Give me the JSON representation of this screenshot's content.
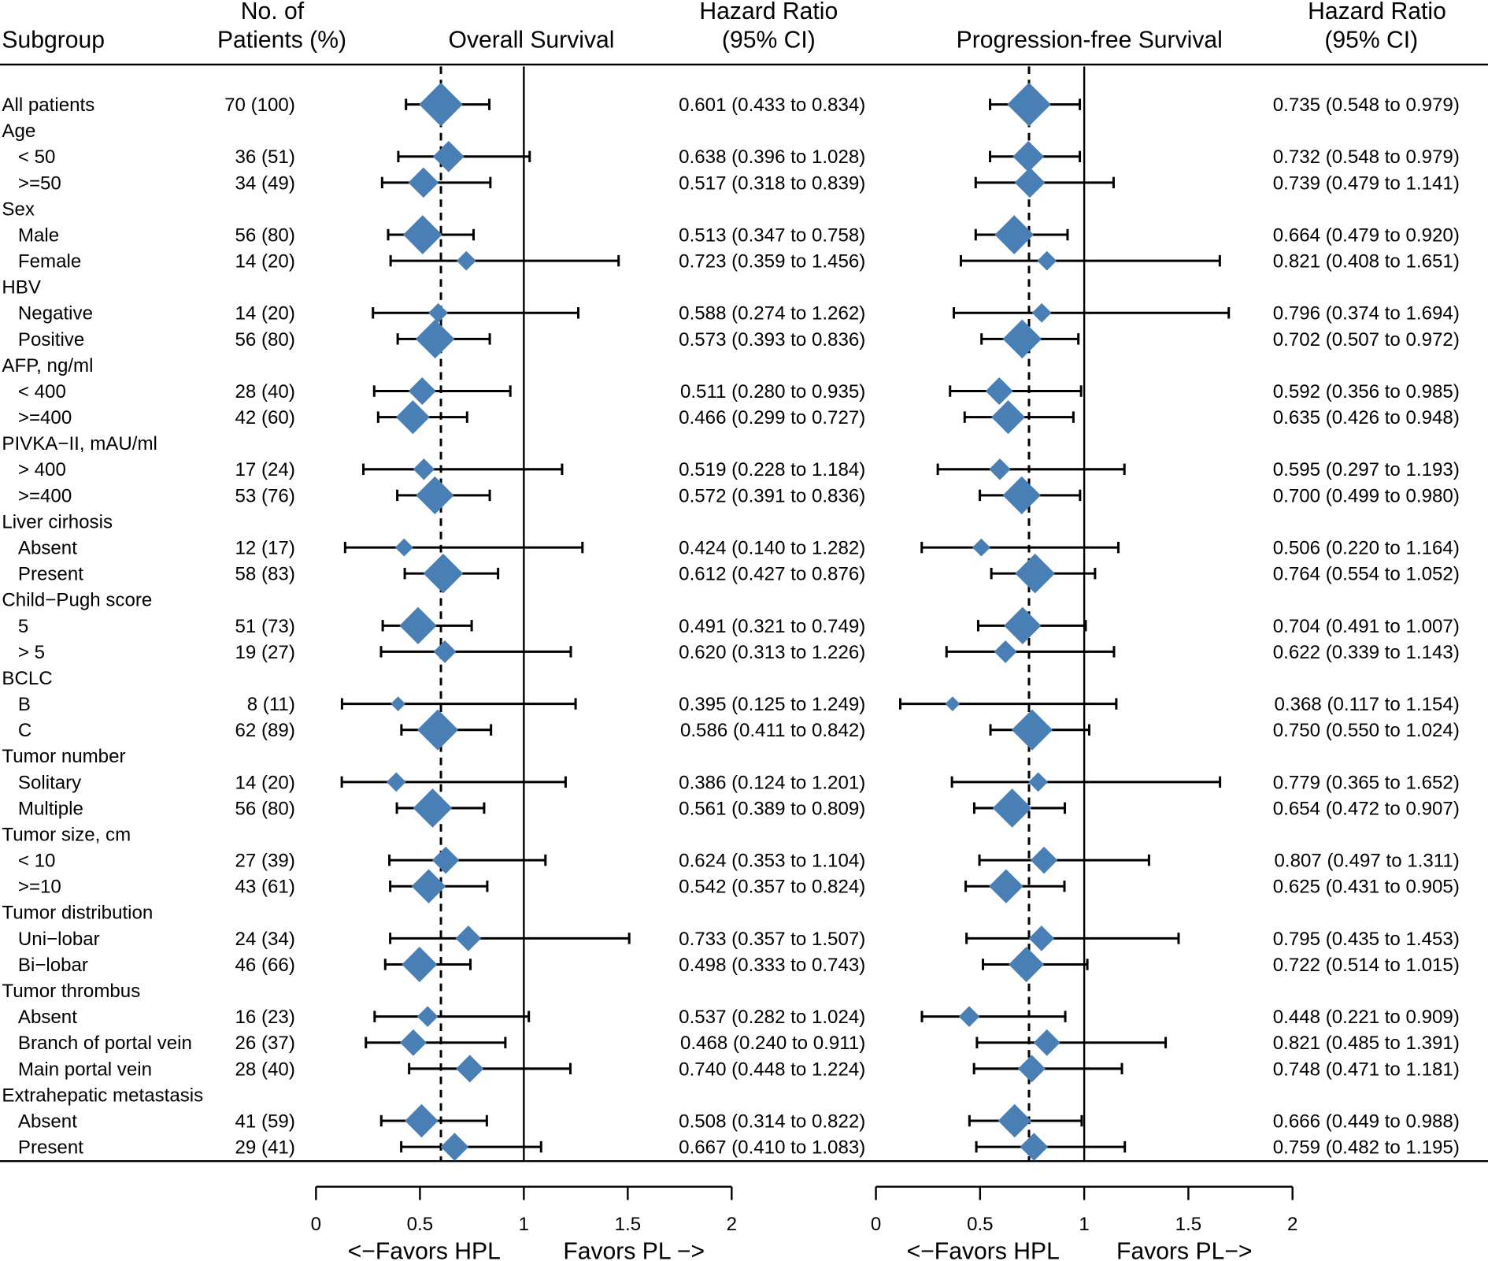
{
  "chart_data": {
    "type": "forest",
    "title": "",
    "headers": {
      "subgroup": "Subgroup",
      "patients_line1": "No. of",
      "patients_line2": "Patients (%)",
      "os_title": "Overall Survival",
      "pfs_title": "Progression-free Survival",
      "hr_line1": "Hazard Ratio",
      "hr_line2": "(95% CI)"
    },
    "axis": {
      "min": 0,
      "max": 2,
      "ticks": [
        0,
        0.5,
        1,
        1.5,
        2
      ],
      "tick_labels": [
        "0",
        "0.5",
        "1",
        "1.5",
        "2"
      ],
      "reference_line": 1,
      "left_label": "<−Favors HPL",
      "right_label_os": "Favors PL −>",
      "right_label_pfs": "Favors PL−>"
    },
    "overall_hr_line": {
      "os": 0.601,
      "pfs": 0.735
    },
    "colors": {
      "marker": "#4a7fb5",
      "line": "#000000"
    },
    "rows": [
      {
        "label": "All patients",
        "group": true,
        "indent": false,
        "n": "70 (100)",
        "os": {
          "hr": 0.601,
          "lo": 0.433,
          "hi": 0.834,
          "text": "0.601 (0.433 to 0.834)"
        },
        "pfs": {
          "hr": 0.735,
          "lo": 0.548,
          "hi": 0.979,
          "text": "0.735 (0.548 to 0.979)"
        }
      },
      {
        "label": "Age",
        "header": true
      },
      {
        "label": "< 50",
        "indent": true,
        "n": "36 (51)",
        "os": {
          "hr": 0.638,
          "lo": 0.396,
          "hi": 1.028,
          "text": "0.638 (0.396 to 1.028)"
        },
        "pfs": {
          "hr": 0.732,
          "lo": 0.548,
          "hi": 0.979,
          "text": "0.732 (0.548 to 0.979)"
        }
      },
      {
        "label": ">=50",
        "indent": true,
        "n": "34 (49)",
        "os": {
          "hr": 0.517,
          "lo": 0.318,
          "hi": 0.839,
          "text": "0.517 (0.318 to 0.839)"
        },
        "pfs": {
          "hr": 0.739,
          "lo": 0.479,
          "hi": 1.141,
          "text": "0.739 (0.479 to 1.141)"
        }
      },
      {
        "label": "Sex",
        "header": true
      },
      {
        "label": "Male",
        "indent": true,
        "n": "56 (80)",
        "os": {
          "hr": 0.513,
          "lo": 0.347,
          "hi": 0.758,
          "text": "0.513 (0.347 to 0.758)"
        },
        "pfs": {
          "hr": 0.664,
          "lo": 0.479,
          "hi": 0.92,
          "text": "0.664 (0.479 to 0.920)"
        }
      },
      {
        "label": "Female",
        "indent": true,
        "n": "14 (20)",
        "os": {
          "hr": 0.723,
          "lo": 0.359,
          "hi": 1.456,
          "text": "0.723 (0.359 to 1.456)"
        },
        "pfs": {
          "hr": 0.821,
          "lo": 0.408,
          "hi": 1.651,
          "text": "0.821 (0.408 to 1.651)"
        }
      },
      {
        "label": "HBV",
        "header": true
      },
      {
        "label": "Negative",
        "indent": true,
        "n": "14 (20)",
        "os": {
          "hr": 0.588,
          "lo": 0.274,
          "hi": 1.262,
          "text": "0.588 (0.274 to 1.262)"
        },
        "pfs": {
          "hr": 0.796,
          "lo": 0.374,
          "hi": 1.694,
          "text": "0.796 (0.374 to 1.694)"
        }
      },
      {
        "label": "Positive",
        "indent": true,
        "n": "56 (80)",
        "os": {
          "hr": 0.573,
          "lo": 0.393,
          "hi": 0.836,
          "text": "0.573 (0.393 to 0.836)"
        },
        "pfs": {
          "hr": 0.702,
          "lo": 0.507,
          "hi": 0.972,
          "text": "0.702 (0.507 to 0.972)"
        }
      },
      {
        "label": "AFP, ng/ml",
        "header": true
      },
      {
        "label": "< 400",
        "indent": true,
        "n": "28 (40)",
        "os": {
          "hr": 0.511,
          "lo": 0.28,
          "hi": 0.935,
          "text": "0.511 (0.280 to 0.935)"
        },
        "pfs": {
          "hr": 0.592,
          "lo": 0.356,
          "hi": 0.985,
          "text": "0.592 (0.356 to 0.985)"
        }
      },
      {
        "label": ">=400",
        "indent": true,
        "n": "42 (60)",
        "os": {
          "hr": 0.466,
          "lo": 0.299,
          "hi": 0.727,
          "text": "0.466 (0.299 to 0.727)"
        },
        "pfs": {
          "hr": 0.635,
          "lo": 0.426,
          "hi": 0.948,
          "text": "0.635 (0.426 to 0.948)"
        }
      },
      {
        "label": "PIVKA−II, mAU/ml",
        "header": true
      },
      {
        "label": "> 400",
        "indent": true,
        "n": "17 (24)",
        "os": {
          "hr": 0.519,
          "lo": 0.228,
          "hi": 1.184,
          "text": "0.519 (0.228 to 1.184)"
        },
        "pfs": {
          "hr": 0.595,
          "lo": 0.297,
          "hi": 1.193,
          "text": "0.595 (0.297 to 1.193)"
        }
      },
      {
        "label": ">=400",
        "indent": true,
        "n": "53 (76)",
        "os": {
          "hr": 0.572,
          "lo": 0.391,
          "hi": 0.836,
          "text": "0.572 (0.391 to 0.836)"
        },
        "pfs": {
          "hr": 0.7,
          "lo": 0.499,
          "hi": 0.98,
          "text": "0.700 (0.499 to 0.980)"
        }
      },
      {
        "label": "Liver cirhosis",
        "header": true
      },
      {
        "label": "Absent",
        "indent": true,
        "n": "12 (17)",
        "os": {
          "hr": 0.424,
          "lo": 0.14,
          "hi": 1.282,
          "text": "0.424 (0.140 to 1.282)"
        },
        "pfs": {
          "hr": 0.506,
          "lo": 0.22,
          "hi": 1.164,
          "text": "0.506 (0.220 to 1.164)"
        }
      },
      {
        "label": "Present",
        "indent": true,
        "n": "58 (83)",
        "os": {
          "hr": 0.612,
          "lo": 0.427,
          "hi": 0.876,
          "text": "0.612 (0.427 to 0.876)"
        },
        "pfs": {
          "hr": 0.764,
          "lo": 0.554,
          "hi": 1.052,
          "text": "0.764 (0.554 to 1.052)"
        }
      },
      {
        "label": "Child−Pugh score",
        "header": true
      },
      {
        "label": "5",
        "indent": true,
        "n": "51 (73)",
        "os": {
          "hr": 0.491,
          "lo": 0.321,
          "hi": 0.749,
          "text": "0.491 (0.321 to 0.749)"
        },
        "pfs": {
          "hr": 0.704,
          "lo": 0.491,
          "hi": 1.007,
          "text": "0.704 (0.491 to 1.007)"
        }
      },
      {
        "label": "> 5",
        "indent": true,
        "n": "19 (27)",
        "os": {
          "hr": 0.62,
          "lo": 0.313,
          "hi": 1.226,
          "text": "0.620 (0.313 to 1.226)"
        },
        "pfs": {
          "hr": 0.622,
          "lo": 0.339,
          "hi": 1.143,
          "text": "0.622 (0.339 to 1.143)"
        }
      },
      {
        "label": "BCLC",
        "header": true
      },
      {
        "label": "B",
        "indent": true,
        "n": "8 (11)",
        "os": {
          "hr": 0.395,
          "lo": 0.125,
          "hi": 1.249,
          "text": "0.395 (0.125 to 1.249)"
        },
        "pfs": {
          "hr": 0.368,
          "lo": 0.117,
          "hi": 1.154,
          "text": "0.368 (0.117 to 1.154)"
        }
      },
      {
        "label": "C",
        "indent": true,
        "n": "62 (89)",
        "os": {
          "hr": 0.586,
          "lo": 0.411,
          "hi": 0.842,
          "text": "0.586 (0.411 to 0.842)"
        },
        "pfs": {
          "hr": 0.75,
          "lo": 0.55,
          "hi": 1.024,
          "text": "0.750 (0.550 to 1.024)"
        }
      },
      {
        "label": "Tumor number",
        "header": true
      },
      {
        "label": "Solitary",
        "indent": true,
        "n": "14 (20)",
        "os": {
          "hr": 0.386,
          "lo": 0.124,
          "hi": 1.201,
          "text": "0.386 (0.124 to 1.201)"
        },
        "pfs": {
          "hr": 0.779,
          "lo": 0.365,
          "hi": 1.652,
          "text": "0.779 (0.365 to 1.652)"
        }
      },
      {
        "label": "Multiple",
        "indent": true,
        "n": "56 (80)",
        "os": {
          "hr": 0.561,
          "lo": 0.389,
          "hi": 0.809,
          "text": "0.561 (0.389 to 0.809)"
        },
        "pfs": {
          "hr": 0.654,
          "lo": 0.472,
          "hi": 0.907,
          "text": "0.654 (0.472 to 0.907)"
        }
      },
      {
        "label": "Tumor size, cm",
        "header": true
      },
      {
        "label": "< 10",
        "indent": true,
        "n": "27 (39)",
        "os": {
          "hr": 0.624,
          "lo": 0.353,
          "hi": 1.104,
          "text": "0.624 (0.353 to 1.104)"
        },
        "pfs": {
          "hr": 0.807,
          "lo": 0.497,
          "hi": 1.311,
          "text": "0.807 (0.497 to 1.311)"
        }
      },
      {
        "label": ">=10",
        "indent": true,
        "n": "43 (61)",
        "os": {
          "hr": 0.542,
          "lo": 0.357,
          "hi": 0.824,
          "text": "0.542 (0.357 to 0.824)"
        },
        "pfs": {
          "hr": 0.625,
          "lo": 0.431,
          "hi": 0.905,
          "text": "0.625 (0.431 to 0.905)"
        }
      },
      {
        "label": "Tumor distribution",
        "header": true
      },
      {
        "label": "Uni−lobar",
        "indent": true,
        "n": "24 (34)",
        "os": {
          "hr": 0.733,
          "lo": 0.357,
          "hi": 1.507,
          "text": "0.733 (0.357 to 1.507)"
        },
        "pfs": {
          "hr": 0.795,
          "lo": 0.435,
          "hi": 1.453,
          "text": "0.795 (0.435 to 1.453)"
        }
      },
      {
        "label": "Bi−lobar",
        "indent": true,
        "n": "46 (66)",
        "os": {
          "hr": 0.498,
          "lo": 0.333,
          "hi": 0.743,
          "text": "0.498 (0.333 to 0.743)"
        },
        "pfs": {
          "hr": 0.722,
          "lo": 0.514,
          "hi": 1.015,
          "text": "0.722 (0.514 to 1.015)"
        }
      },
      {
        "label": "Tumor thrombus",
        "header": true
      },
      {
        "label": "Absent",
        "indent": true,
        "n": "16 (23)",
        "os": {
          "hr": 0.537,
          "lo": 0.282,
          "hi": 1.024,
          "text": "0.537 (0.282 to 1.024)"
        },
        "pfs": {
          "hr": 0.448,
          "lo": 0.221,
          "hi": 0.909,
          "text": "0.448 (0.221 to 0.909)"
        }
      },
      {
        "label": "Branch of portal vein",
        "indent": true,
        "n": "26 (37)",
        "os": {
          "hr": 0.468,
          "lo": 0.24,
          "hi": 0.911,
          "text": "0.468 (0.240 to 0.911)"
        },
        "pfs": {
          "hr": 0.821,
          "lo": 0.485,
          "hi": 1.391,
          "text": "0.821 (0.485 to 1.391)"
        }
      },
      {
        "label": "Main portal vein",
        "indent": true,
        "n": "28 (40)",
        "os": {
          "hr": 0.74,
          "lo": 0.448,
          "hi": 1.224,
          "text": "0.740 (0.448 to 1.224)"
        },
        "pfs": {
          "hr": 0.748,
          "lo": 0.471,
          "hi": 1.181,
          "text": "0.748 (0.471 to 1.181)"
        }
      },
      {
        "label": "Extrahepatic metastasis",
        "header": true
      },
      {
        "label": "Absent",
        "indent": true,
        "n": "41 (59)",
        "os": {
          "hr": 0.508,
          "lo": 0.314,
          "hi": 0.822,
          "text": "0.508 (0.314 to 0.822)"
        },
        "pfs": {
          "hr": 0.666,
          "lo": 0.449,
          "hi": 0.988,
          "text": "0.666 (0.449 to 0.988)"
        }
      },
      {
        "label": "Present",
        "indent": true,
        "n": "29 (41)",
        "os": {
          "hr": 0.667,
          "lo": 0.41,
          "hi": 1.083,
          "text": "0.667 (0.410 to 1.083)"
        },
        "pfs": {
          "hr": 0.759,
          "lo": 0.482,
          "hi": 1.195,
          "text": "0.759 (0.482 to 1.195)"
        }
      }
    ]
  }
}
